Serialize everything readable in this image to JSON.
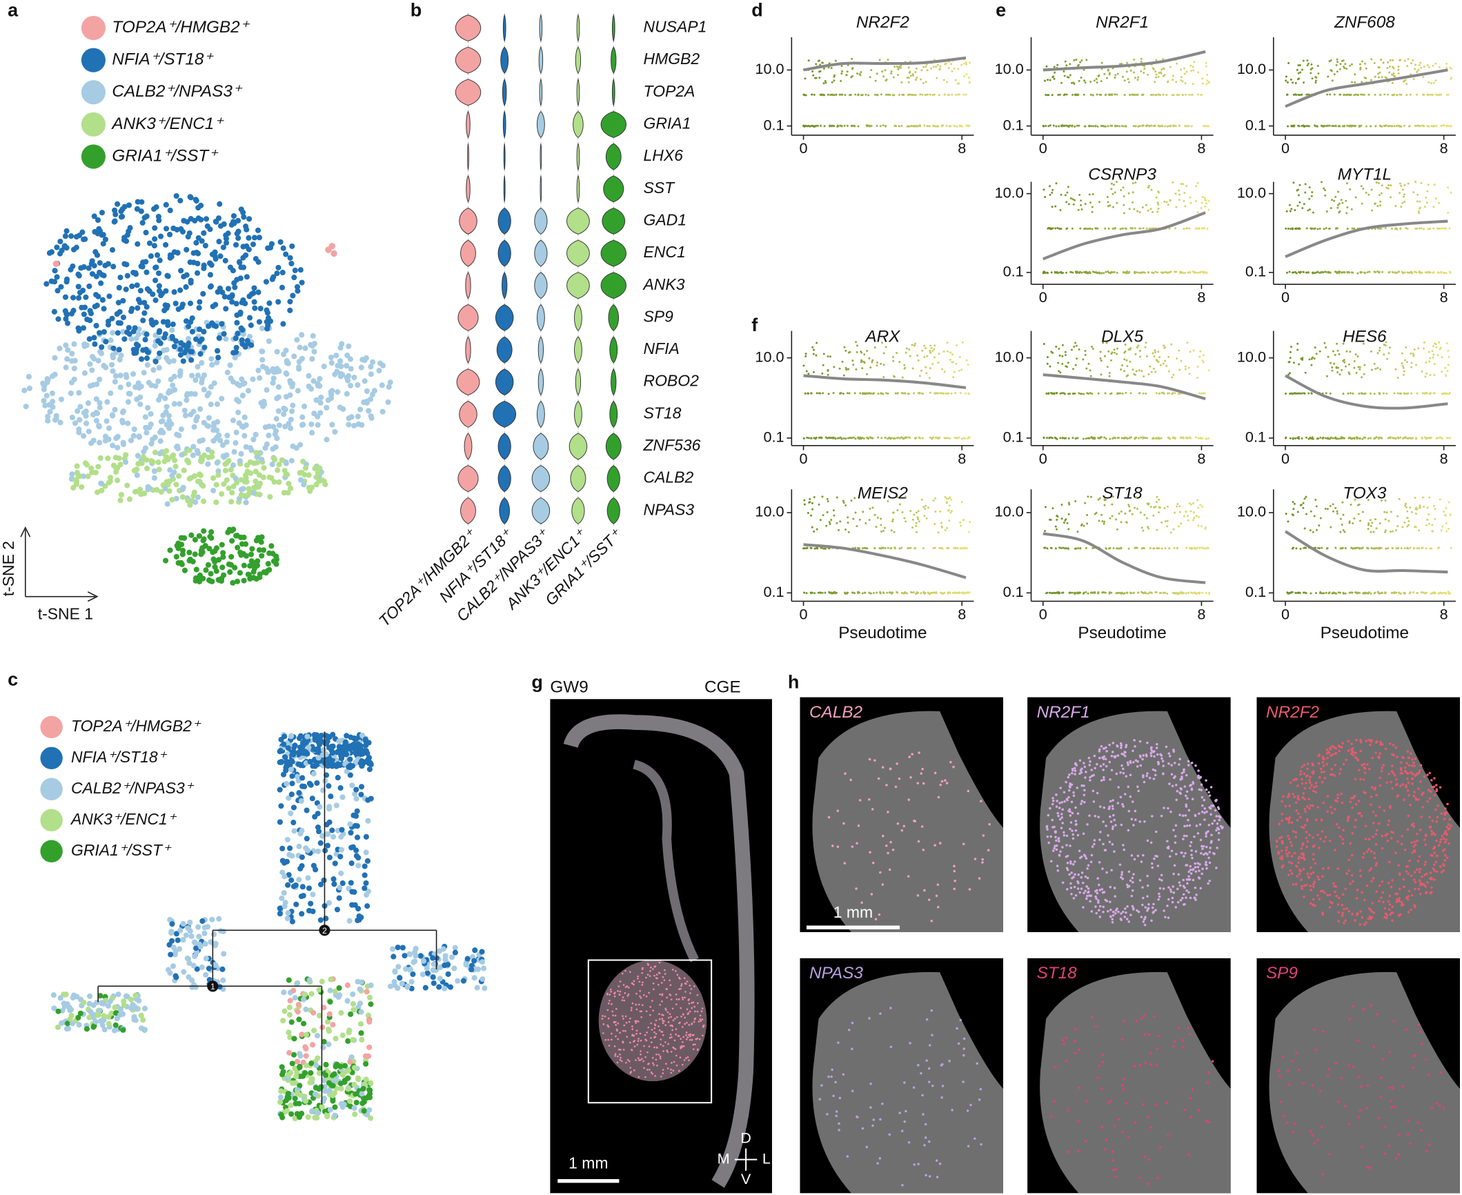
{
  "panel_labels": [
    "a",
    "b",
    "c",
    "d",
    "e",
    "f",
    "g",
    "h"
  ],
  "clusters": [
    {
      "name": "TOP2A⁺/HMGB2⁺",
      "color": "#f4a3a3"
    },
    {
      "name": "NFIA⁺/ST18⁺",
      "color": "#2171b5"
    },
    {
      "name": "CALB2⁺/NPAS3⁺",
      "color": "#a6cbe3"
    },
    {
      "name": "ANK3⁺/ENC1⁺",
      "color": "#b2df8a"
    },
    {
      "name": "GRIA1⁺/SST⁺",
      "color": "#33a02c"
    }
  ],
  "tsne": {
    "x_label": "t-SNE 1",
    "y_label": "t-SNE 2"
  },
  "violin": {
    "genes": [
      "NUSAP1",
      "HMGB2",
      "TOP2A",
      "GRIA1",
      "LHX6",
      "SST",
      "GAD1",
      "ENC1",
      "ANK3",
      "SP9",
      "NFIA",
      "ROBO2",
      "ST18",
      "ZNF536",
      "CALB2",
      "NPAS3"
    ],
    "widths": [
      [
        1,
        0.1,
        0.1,
        0.1,
        0.1
      ],
      [
        1,
        0.3,
        0.15,
        0.2,
        0.2
      ],
      [
        1,
        0.15,
        0.1,
        0.1,
        0.1
      ],
      [
        0.15,
        0.1,
        0.3,
        0.4,
        1
      ],
      [
        0.05,
        0.05,
        0.05,
        0.1,
        0.6
      ],
      [
        0.15,
        0.05,
        0.05,
        0.1,
        0.8
      ],
      [
        0.7,
        0.5,
        0.5,
        0.9,
        0.9
      ],
      [
        0.6,
        0.5,
        0.5,
        0.9,
        1
      ],
      [
        0.2,
        0.2,
        0.5,
        0.9,
        1
      ],
      [
        0.8,
        0.7,
        0.3,
        0.3,
        0.4
      ],
      [
        0.2,
        0.6,
        0.2,
        0.3,
        0.3
      ],
      [
        0.9,
        0.7,
        0.2,
        0.2,
        0.2
      ],
      [
        0.7,
        0.9,
        0.3,
        0.3,
        0.3
      ],
      [
        0.3,
        0.5,
        0.6,
        0.7,
        0.6
      ],
      [
        0.8,
        0.5,
        0.7,
        0.6,
        0.5
      ],
      [
        0.6,
        0.4,
        0.7,
        0.5,
        0.5
      ]
    ]
  },
  "trajectory": {
    "nodes": [
      "1",
      "2"
    ]
  },
  "pseudotime": {
    "x_label": "Pseudotime",
    "xlim": [
      -0.6,
      8.6
    ],
    "xticks": [
      0,
      8
    ],
    "yticks": [
      0.1,
      {
        "value": 10,
        "label": "10.0"
      }
    ],
    "trend_x": [
      0,
      2,
      4,
      6,
      8.2
    ],
    "plots": [
      {
        "gene": "NR2F2",
        "ylim": [
          0.047,
          147
        ],
        "trend": [
          10,
          17,
          17,
          18,
          27
        ]
      },
      {
        "gene": "NR2F1",
        "ylim": [
          0.047,
          147
        ],
        "trend": [
          10,
          12,
          14,
          20,
          45
        ]
      },
      {
        "gene": "ZNF608",
        "ylim": [
          0.047,
          147
        ],
        "trend": [
          0.5,
          1.8,
          3.2,
          5.4,
          10
        ]
      },
      {
        "gene": "CSRNP3",
        "ylim": [
          0.05,
          20
        ],
        "trend": [
          0.22,
          0.52,
          0.9,
          1.3,
          3.3
        ]
      },
      {
        "gene": "MYT1L",
        "ylim": [
          0.05,
          20
        ],
        "trend": [
          0.25,
          0.65,
          1.3,
          1.7,
          2
        ]
      },
      {
        "gene": "ARX",
        "ylim": [
          0.065,
          47
        ],
        "trend": [
          3.6,
          3,
          2.8,
          2.4,
          1.8
        ]
      },
      {
        "gene": "DLX5",
        "ylim": [
          0.065,
          47
        ],
        "trend": [
          3.8,
          3.1,
          2.5,
          1.9,
          0.95
        ]
      },
      {
        "gene": "HES6",
        "ylim": [
          0.065,
          47
        ],
        "trend": [
          3.6,
          1.1,
          0.62,
          0.56,
          0.72
        ]
      },
      {
        "gene": "MEIS2",
        "ylim": [
          0.062,
          38
        ],
        "trend": [
          1.6,
          1.3,
          0.85,
          0.5,
          0.24
        ]
      },
      {
        "gene": "ST18",
        "ylim": [
          0.062,
          38
        ],
        "trend": [
          3,
          2,
          0.58,
          0.24,
          0.18
        ]
      },
      {
        "gene": "TOX3",
        "ylim": [
          0.062,
          38
        ],
        "trend": [
          3.4,
          0.85,
          0.37,
          0.36,
          0.33
        ]
      }
    ]
  },
  "section": {
    "stage": "GW9",
    "region": "CGE",
    "scale_bar": "1 mm",
    "compass": [
      "D",
      "V",
      "M",
      "L"
    ]
  },
  "stains": {
    "scale_bar": "1 mm",
    "probes": [
      {
        "name": "CALB2",
        "color": "#f2a0c4"
      },
      {
        "name": "NR2F1",
        "color": "#d9a8ea"
      },
      {
        "name": "NR2F2",
        "color": "#ea5a6c"
      },
      {
        "name": "NPAS3",
        "color": "#b9a0e0"
      },
      {
        "name": "ST18",
        "color": "#e3407c"
      },
      {
        "name": "SP9",
        "color": "#e3407c"
      }
    ]
  }
}
